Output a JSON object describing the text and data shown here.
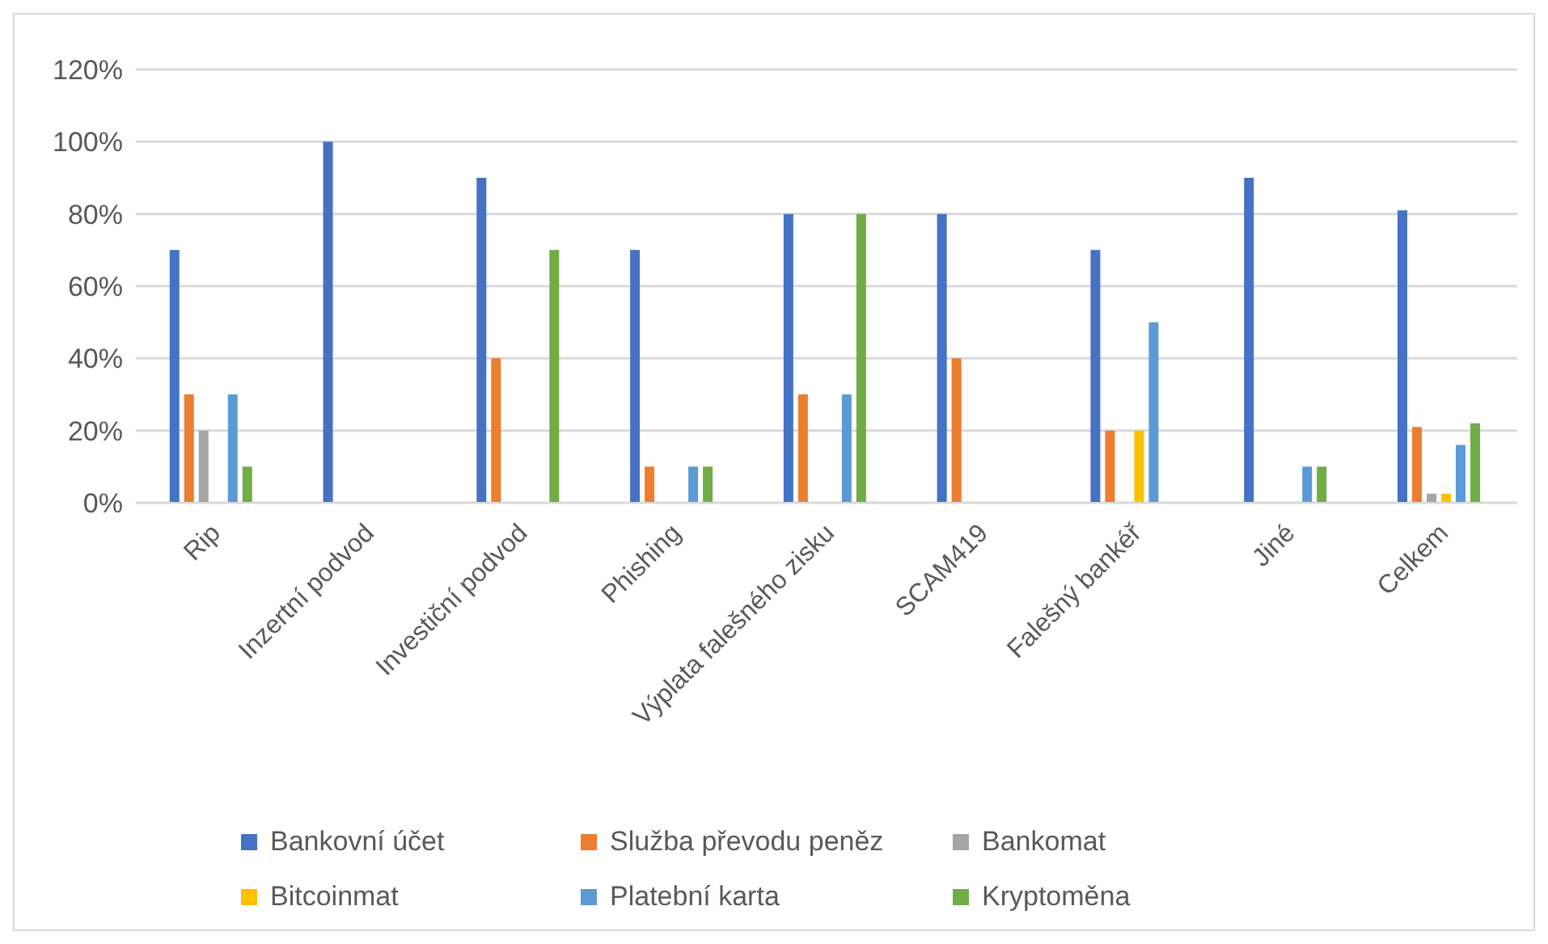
{
  "chart_data": {
    "type": "bar",
    "categories": [
      "Rip",
      "Inzertní podvod",
      "Investiční podvod",
      "Phishing",
      "Výplata falešného zisku",
      "SCAM419",
      "Falešný bankéř",
      "Jiné",
      "Celkem"
    ],
    "series": [
      {
        "name": "Bankovní účet",
        "color": "#4472c4",
        "values": [
          70,
          100,
          90,
          70,
          80,
          80,
          70,
          90,
          81
        ]
      },
      {
        "name": "Služba převodu peněz",
        "color": "#ed7d31",
        "values": [
          30,
          0,
          40,
          10,
          30,
          40,
          20,
          0,
          21
        ]
      },
      {
        "name": "Bankomat",
        "color": "#a5a5a5",
        "values": [
          20,
          0,
          0,
          0,
          0,
          0,
          0,
          0,
          2.5
        ]
      },
      {
        "name": "Bitcoinmat",
        "color": "#ffc000",
        "values": [
          0,
          0,
          0,
          0,
          0,
          0,
          20,
          0,
          2.5
        ]
      },
      {
        "name": "Platební karta",
        "color": "#5b9bd5",
        "values": [
          30,
          0,
          0,
          10,
          30,
          0,
          50,
          10,
          16
        ]
      },
      {
        "name": "Kryptoměna",
        "color": "#70ad47",
        "values": [
          10,
          0,
          70,
          10,
          80,
          0,
          0,
          10,
          22
        ]
      }
    ],
    "ylim": [
      0,
      120
    ],
    "yticks": [
      {
        "value": 0,
        "label": "0%"
      },
      {
        "value": 20,
        "label": "20%"
      },
      {
        "value": 40,
        "label": "40%"
      },
      {
        "value": 60,
        "label": "60%"
      },
      {
        "value": 80,
        "label": "80%"
      },
      {
        "value": 100,
        "label": "100%"
      },
      {
        "value": 120,
        "label": "120%"
      }
    ],
    "grid": "y",
    "legend": "bottom"
  }
}
